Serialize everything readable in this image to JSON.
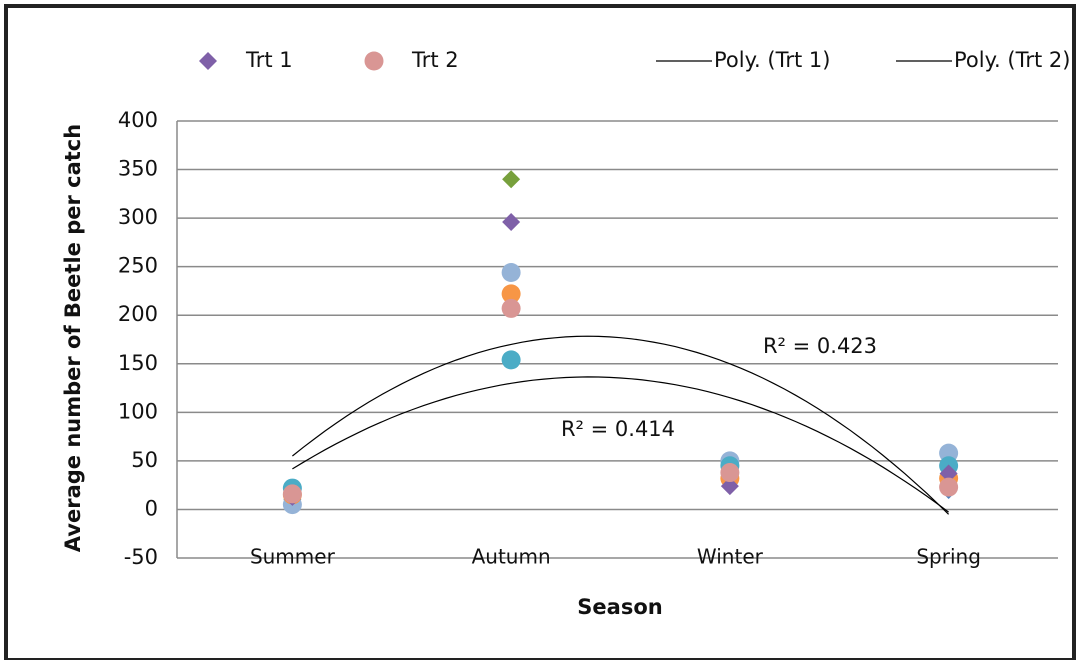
{
  "chart_data": {
    "type": "scatter",
    "x_label": "Season",
    "y_label": "Average number of Beetle per catch",
    "categories": [
      "Summer",
      "Autumn",
      "Winter",
      "Spring"
    ],
    "ylim": [
      -50,
      400
    ],
    "yticks": [
      -50,
      0,
      50,
      100,
      150,
      200,
      250,
      300,
      350,
      400
    ],
    "grid": true,
    "series": [
      {
        "name": "Trt 1",
        "color": "#7f60a8",
        "marker": "diamond",
        "values": [
          13,
          296,
          24,
          37
        ],
        "trendline": {
          "name": "Poly. (Trt 1)",
          "order": 2,
          "color": "#000000",
          "r2_label": "R² = 0.423"
        }
      },
      {
        "name": "Trt 2",
        "color": "#d99694",
        "marker": "circle",
        "values": [
          16,
          207,
          38,
          23
        ],
        "trendline": {
          "name": "Poly. (Trt 2)",
          "order": 2,
          "color": "#000000",
          "r2_label": "R² = 0.414"
        }
      },
      {
        "color": "#77a03c",
        "marker": "diamond",
        "values": [
          20,
          340,
          45,
          35
        ]
      },
      {
        "color": "#4f81bd",
        "marker": "diamond",
        "values": [
          10,
          null,
          40,
          20
        ]
      },
      {
        "color": "#95b3d7",
        "marker": "circle",
        "values": [
          5,
          244,
          50,
          58
        ]
      },
      {
        "color": "#f79646",
        "marker": "circle",
        "values": [
          15,
          222,
          32,
          32
        ]
      },
      {
        "color": "#4bacc6",
        "marker": "circle",
        "values": [
          22,
          154,
          45,
          45
        ]
      }
    ]
  }
}
